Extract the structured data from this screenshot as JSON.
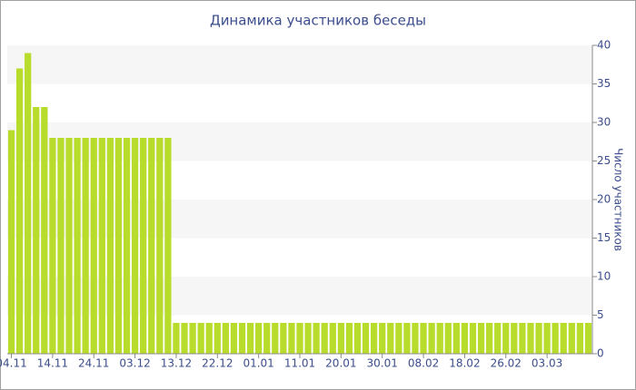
{
  "chart_data": {
    "type": "bar",
    "title": "Динамика участников беседы",
    "y_label": "Число участников",
    "categories": [
      "04.11",
      null,
      null,
      null,
      null,
      "14.11",
      null,
      null,
      null,
      null,
      "24.11",
      null,
      null,
      null,
      null,
      "03.12",
      null,
      null,
      null,
      null,
      "13.12",
      null,
      null,
      null,
      null,
      "22.12",
      null,
      null,
      null,
      null,
      "01.01",
      null,
      null,
      null,
      null,
      "11.01",
      null,
      null,
      null,
      null,
      "20.01",
      null,
      null,
      null,
      null,
      "30.01",
      null,
      null,
      null,
      null,
      "08.02",
      null,
      null,
      null,
      null,
      "18.02",
      null,
      null,
      null,
      null,
      "26.02",
      null,
      null,
      null,
      null,
      "03.03",
      null,
      null,
      null,
      null,
      null
    ],
    "values": [
      29,
      37,
      39,
      32,
      32,
      28,
      28,
      28,
      28,
      28,
      28,
      28,
      28,
      28,
      28,
      28,
      28,
      28,
      28,
      28,
      4,
      4,
      4,
      4,
      4,
      4,
      4,
      4,
      4,
      4,
      4,
      4,
      4,
      4,
      4,
      4,
      4,
      4,
      4,
      4,
      4,
      4,
      4,
      4,
      4,
      4,
      4,
      4,
      4,
      4,
      4,
      4,
      4,
      4,
      4,
      4,
      4,
      4,
      4,
      4,
      4,
      4,
      4,
      4,
      4,
      4,
      4,
      4,
      4,
      4,
      4
    ],
    "color": "#b8dc2c",
    "ylim": [
      0,
      40
    ],
    "yticks": [
      0,
      5,
      10,
      15,
      20,
      25,
      30,
      35,
      40
    ],
    "grid": "bands",
    "y_axis_side": "right"
  }
}
